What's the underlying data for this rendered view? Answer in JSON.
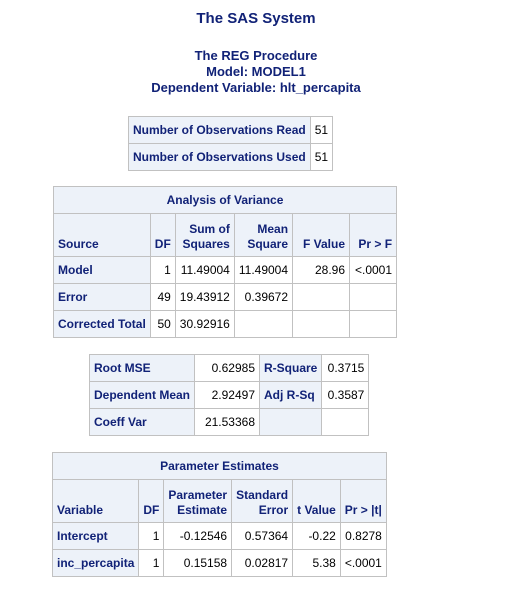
{
  "title": "The SAS System",
  "procedure": {
    "line1": "The REG Procedure",
    "line2": "Model: MODEL1",
    "line3": "Dependent Variable: hlt_percapita"
  },
  "observations": [
    {
      "label": "Number of Observations Read",
      "value": "51"
    },
    {
      "label": "Number of Observations Used",
      "value": "51"
    }
  ],
  "anova": {
    "caption": "Analysis of Variance",
    "headers": {
      "source": "Source",
      "df": "DF",
      "ss_line1": "Sum of",
      "ss_line2": "Squares",
      "ms_line1": "Mean",
      "ms_line2": "Square",
      "f": "F Value",
      "p": "Pr > F"
    },
    "rows": [
      {
        "source": "Model",
        "df": "1",
        "ss": "11.49004",
        "ms": "11.49004",
        "f": "28.96",
        "p": "<.0001"
      },
      {
        "source": "Error",
        "df": "49",
        "ss": "19.43912",
        "ms": "0.39672",
        "f": "",
        "p": ""
      },
      {
        "source": "Corrected Total",
        "df": "50",
        "ss": "30.92916",
        "ms": "",
        "f": "",
        "p": ""
      }
    ]
  },
  "fit": {
    "rows": [
      {
        "l1": "Root MSE",
        "v1": "0.62985",
        "l2": "R-Square",
        "v2": "0.3715"
      },
      {
        "l1": "Dependent Mean",
        "v1": "2.92497",
        "l2": "Adj R-Sq",
        "v2": "0.3587"
      },
      {
        "l1": "Coeff Var",
        "v1": "21.53368",
        "l2": "",
        "v2": ""
      }
    ]
  },
  "params": {
    "caption": "Parameter Estimates",
    "headers": {
      "variable": "Variable",
      "df": "DF",
      "est_line1": "Parameter",
      "est_line2": "Estimate",
      "se_line1": "Standard",
      "se_line2": "Error",
      "t": "t Value",
      "p": "Pr > |t|"
    },
    "rows": [
      {
        "variable": "Intercept",
        "df": "1",
        "est": "-0.12546",
        "se": "0.57364",
        "t": "-0.22",
        "p": "0.8278"
      },
      {
        "variable": "inc_percapita",
        "df": "1",
        "est": "0.15158",
        "se": "0.02817",
        "t": "5.38",
        "p": "<.0001"
      }
    ]
  }
}
